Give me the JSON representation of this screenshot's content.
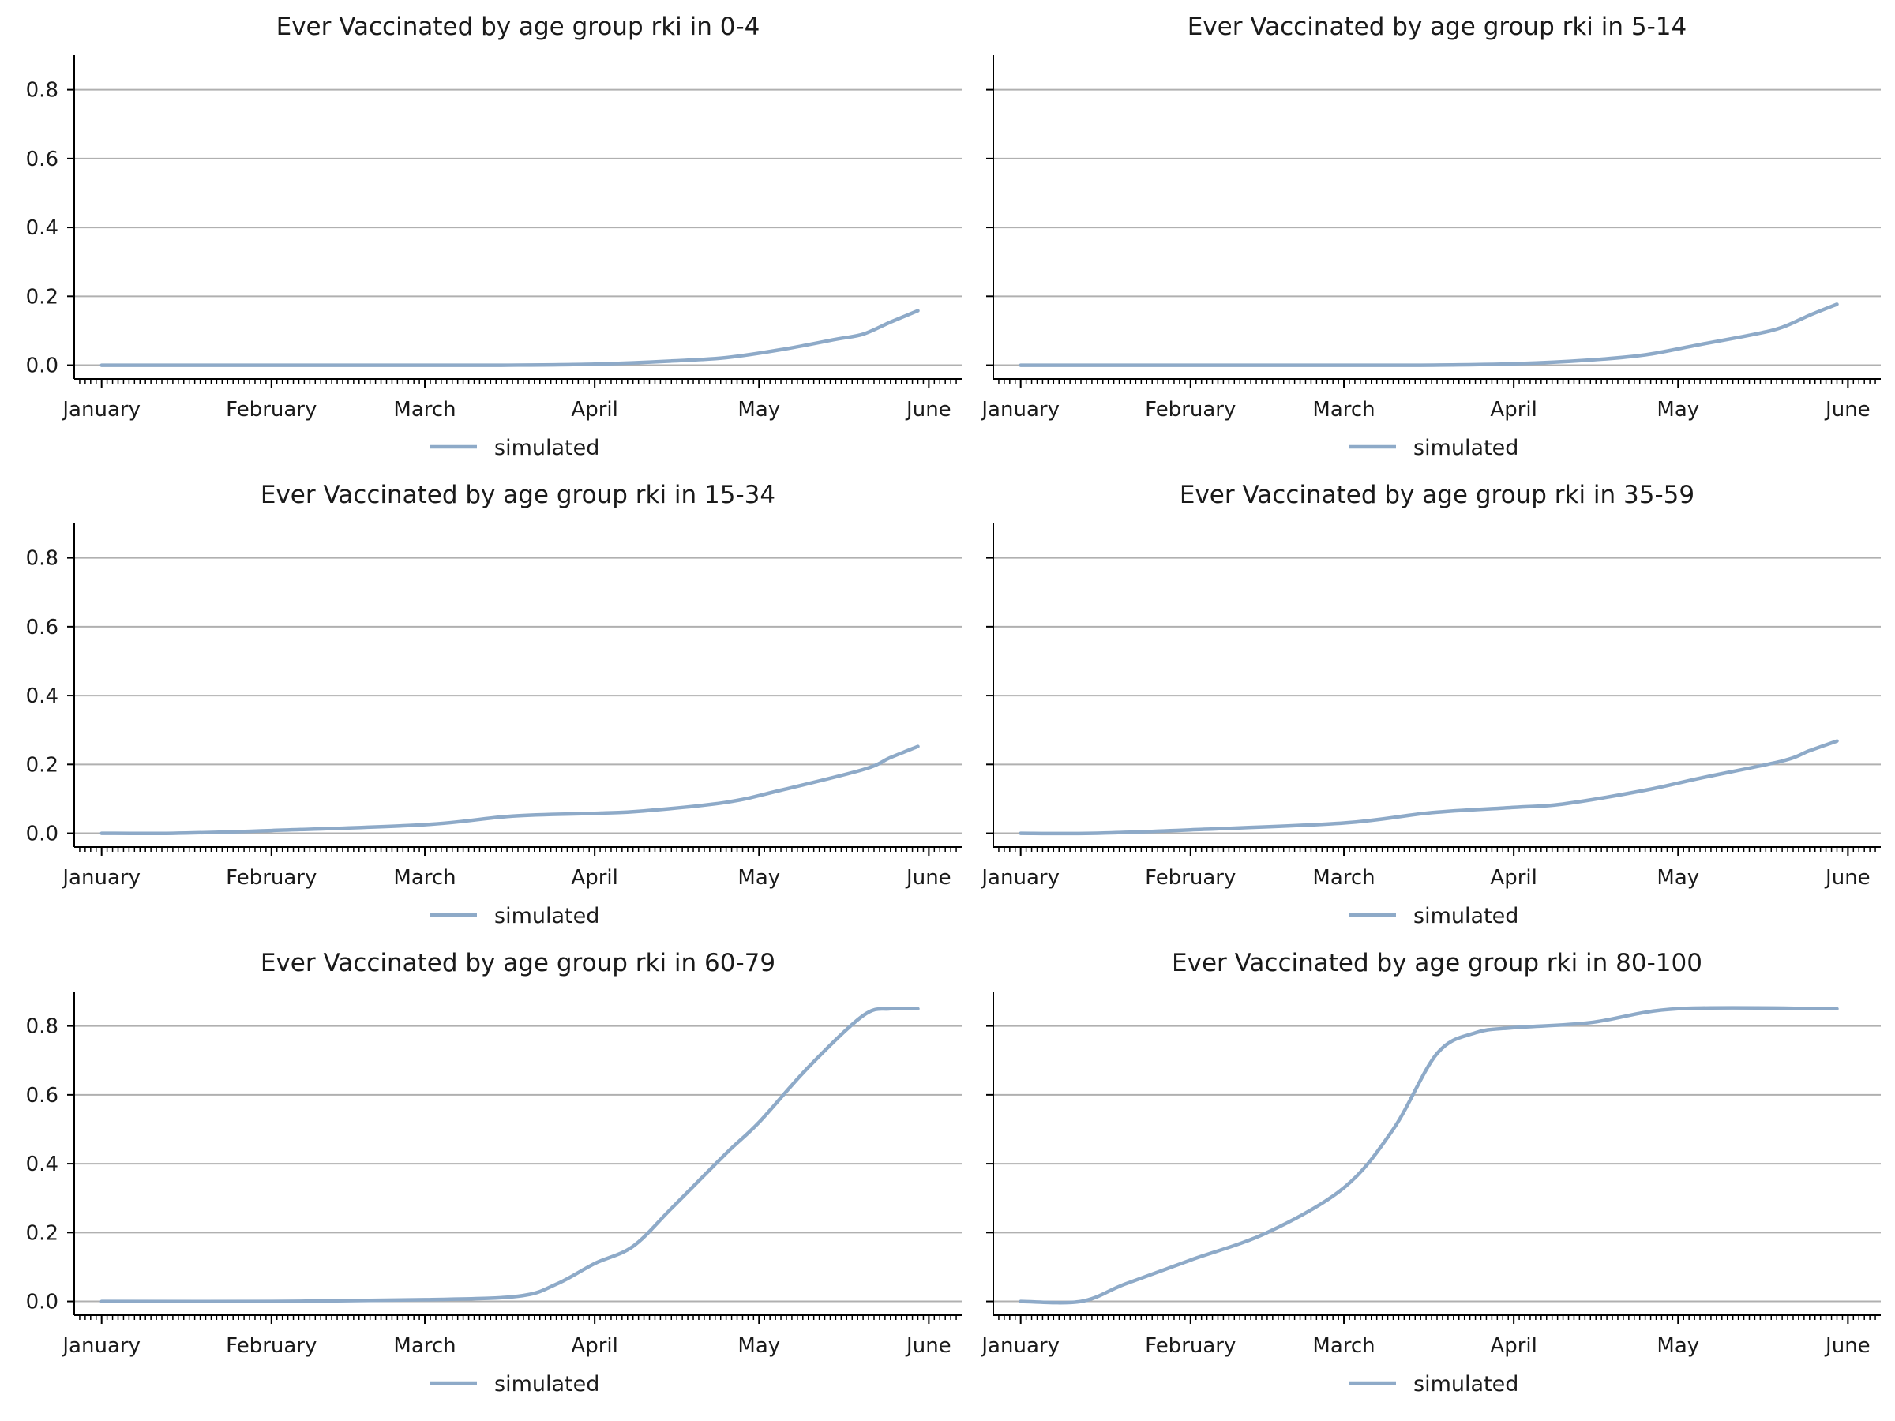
{
  "colors": {
    "series": "#8eaac8",
    "grid": "#b0b0b0",
    "axis": "#000000"
  },
  "chart_data": [
    {
      "type": "line",
      "title": "Ever Vaccinated by age group rki in 0-4",
      "x_ticks": [
        "January",
        "February",
        "March",
        "April",
        "May",
        "June"
      ],
      "ylim": [
        -0.04,
        0.9
      ],
      "y_ticks": [
        "0.0",
        "0.2",
        "0.4",
        "0.6",
        "0.8"
      ],
      "grid": "horizontal",
      "legend": "below",
      "series": [
        {
          "name": "simulated",
          "x": [
            "2021-01-01",
            "2021-02-01",
            "2021-03-01",
            "2021-03-15",
            "2021-04-01",
            "2021-04-15",
            "2021-04-25",
            "2021-05-05",
            "2021-05-15",
            "2021-05-20",
            "2021-05-25",
            "2021-05-30"
          ],
          "y": [
            0,
            0,
            0,
            0,
            0.003,
            0.012,
            0.022,
            0.045,
            0.075,
            0.09,
            0.125,
            0.158
          ]
        }
      ]
    },
    {
      "type": "line",
      "title": "Ever Vaccinated by age group rki in 5-14",
      "x_ticks": [
        "January",
        "February",
        "March",
        "April",
        "May",
        "June"
      ],
      "ylim": [
        -0.04,
        0.9
      ],
      "y_ticks": [
        "0.0",
        "0.2",
        "0.4",
        "0.6",
        "0.8"
      ],
      "grid": "horizontal",
      "legend": "below",
      "series": [
        {
          "name": "simulated",
          "x": [
            "2021-01-01",
            "2021-02-01",
            "2021-03-01",
            "2021-03-15",
            "2021-04-01",
            "2021-04-15",
            "2021-04-25",
            "2021-05-05",
            "2021-05-15",
            "2021-05-20",
            "2021-05-25",
            "2021-05-30"
          ],
          "y": [
            0,
            0,
            0,
            0,
            0.004,
            0.015,
            0.03,
            0.06,
            0.09,
            0.11,
            0.145,
            0.177
          ]
        }
      ]
    },
    {
      "type": "line",
      "title": "Ever Vaccinated by age group rki in 15-34",
      "x_ticks": [
        "January",
        "February",
        "March",
        "April",
        "May",
        "June"
      ],
      "ylim": [
        -0.04,
        0.9
      ],
      "y_ticks": [
        "0.0",
        "0.2",
        "0.4",
        "0.6",
        "0.8"
      ],
      "grid": "horizontal",
      "legend": "below",
      "series": [
        {
          "name": "simulated",
          "x": [
            "2021-01-01",
            "2021-01-14",
            "2021-02-01",
            "2021-03-01",
            "2021-03-17",
            "2021-04-01",
            "2021-04-10",
            "2021-04-25",
            "2021-05-05",
            "2021-05-20",
            "2021-05-25",
            "2021-05-30"
          ],
          "y": [
            0,
            0,
            0.008,
            0.025,
            0.05,
            0.058,
            0.065,
            0.09,
            0.125,
            0.185,
            0.22,
            0.252
          ]
        }
      ]
    },
    {
      "type": "line",
      "title": "Ever Vaccinated by age group rki in 35-59",
      "x_ticks": [
        "January",
        "February",
        "March",
        "April",
        "May",
        "June"
      ],
      "ylim": [
        -0.04,
        0.9
      ],
      "y_ticks": [
        "0.0",
        "0.2",
        "0.4",
        "0.6",
        "0.8"
      ],
      "grid": "horizontal",
      "legend": "below",
      "series": [
        {
          "name": "simulated",
          "x": [
            "2021-01-01",
            "2021-01-14",
            "2021-02-01",
            "2021-03-01",
            "2021-03-17",
            "2021-04-01",
            "2021-04-10",
            "2021-04-25",
            "2021-05-05",
            "2021-05-20",
            "2021-05-25",
            "2021-05-30"
          ],
          "y": [
            0,
            0,
            0.01,
            0.03,
            0.06,
            0.075,
            0.085,
            0.125,
            0.16,
            0.21,
            0.24,
            0.268
          ]
        }
      ]
    },
    {
      "type": "line",
      "title": "Ever Vaccinated by age group rki in 60-79",
      "x_ticks": [
        "January",
        "February",
        "March",
        "April",
        "May",
        "June"
      ],
      "ylim": [
        -0.04,
        0.9
      ],
      "y_ticks": [
        "0.0",
        "0.2",
        "0.4",
        "0.6",
        "0.8"
      ],
      "grid": "horizontal",
      "legend": "below",
      "series": [
        {
          "name": "simulated",
          "x": [
            "2021-01-01",
            "2021-02-01",
            "2021-03-01",
            "2021-03-18",
            "2021-03-25",
            "2021-04-01",
            "2021-04-08",
            "2021-04-15",
            "2021-04-25",
            "2021-05-01",
            "2021-05-10",
            "2021-05-20",
            "2021-05-25",
            "2021-05-30"
          ],
          "y": [
            0,
            0,
            0.005,
            0.015,
            0.05,
            0.11,
            0.16,
            0.27,
            0.43,
            0.52,
            0.68,
            0.83,
            0.85,
            0.85
          ]
        }
      ]
    },
    {
      "type": "line",
      "title": "Ever Vaccinated by age group rki in 80-100",
      "x_ticks": [
        "January",
        "February",
        "March",
        "April",
        "May",
        "June"
      ],
      "ylim": [
        -0.04,
        0.9
      ],
      "y_ticks": [
        "0.0",
        "0.2",
        "0.4",
        "0.6",
        "0.8"
      ],
      "grid": "horizontal",
      "legend": "below",
      "series": [
        {
          "name": "simulated",
          "x": [
            "2021-01-01",
            "2021-01-12",
            "2021-01-20",
            "2021-02-01",
            "2021-02-15",
            "2021-03-01",
            "2021-03-10",
            "2021-03-18",
            "2021-03-25",
            "2021-04-01",
            "2021-04-15",
            "2021-05-01",
            "2021-05-30"
          ],
          "y": [
            0,
            0,
            0.05,
            0.12,
            0.2,
            0.33,
            0.5,
            0.72,
            0.78,
            0.795,
            0.81,
            0.85,
            0.85
          ]
        }
      ]
    }
  ]
}
